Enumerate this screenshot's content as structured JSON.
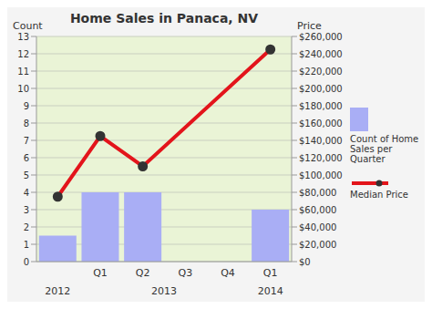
{
  "chart_data": {
    "type": "bar",
    "title": "Home Sales in Panaca, NV",
    "ylabel": "Count",
    "y2label": "Price",
    "categories": [
      null,
      "Q1",
      "Q2",
      "Q3",
      "Q4",
      "Q1"
    ],
    "x_groups": [
      {
        "label": "2012",
        "from": 0,
        "to": 0
      },
      {
        "label": "2013",
        "from": 1,
        "to": 4
      },
      {
        "label": "2014",
        "from": 5,
        "to": 5
      }
    ],
    "series": [
      {
        "name": "Count of Home Sales per Quarter",
        "type": "bar",
        "color": "#a9aef5",
        "values": [
          1.5,
          4,
          4,
          null,
          null,
          3
        ]
      },
      {
        "name": "Median Price",
        "type": "line",
        "color": "#e3141b",
        "axis": "y2",
        "marker": "circle",
        "line_style": "solid",
        "values": [
          75000,
          145000,
          110000,
          null,
          null,
          245000
        ]
      }
    ],
    "ylim": [
      0,
      13
    ],
    "yticks": [
      0,
      1,
      2,
      3,
      4,
      5,
      6,
      7,
      8,
      9,
      10,
      11,
      12,
      13
    ],
    "y2lim": [
      0,
      260000
    ],
    "y2ticks": [
      {
        "value": 0,
        "label": "$0"
      },
      {
        "value": 20000,
        "label": "$20,000"
      },
      {
        "value": 40000,
        "label": "$40,000"
      },
      {
        "value": 60000,
        "label": "$60,000"
      },
      {
        "value": 80000,
        "label": "$80,000"
      },
      {
        "value": 100000,
        "label": "$100,000"
      },
      {
        "value": 120000,
        "label": "$120,000"
      },
      {
        "value": 140000,
        "label": "$140,000"
      },
      {
        "value": 160000,
        "label": "$160,000"
      },
      {
        "value": 180000,
        "label": "$180,000"
      },
      {
        "value": 200000,
        "label": "$200,000"
      },
      {
        "value": 220000,
        "label": "$220,000"
      },
      {
        "value": 240000,
        "label": "$240,000"
      },
      {
        "value": 260000,
        "label": "$260,000"
      }
    ],
    "grid": true
  }
}
